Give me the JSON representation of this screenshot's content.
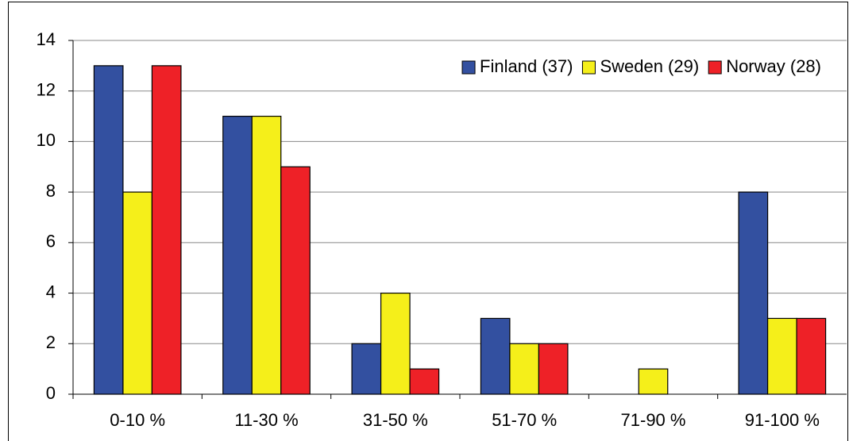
{
  "chart_data": {
    "type": "bar",
    "categories": [
      "0-10 %",
      "11-30 %",
      "31-50 %",
      "51-70 %",
      "71-90 %",
      "91-100 %"
    ],
    "series": [
      {
        "name": "Finland (37)",
        "color": "#3350a0",
        "values": [
          13,
          11,
          2,
          3,
          0,
          8
        ]
      },
      {
        "name": "Sweden (29)",
        "color": "#f5ef1a",
        "values": [
          8,
          11,
          4,
          2,
          1,
          3
        ]
      },
      {
        "name": "Norway (28)",
        "color": "#ee2127",
        "values": [
          13,
          9,
          1,
          2,
          0,
          3
        ]
      }
    ],
    "ylim": [
      0,
      14
    ],
    "yticks": [
      0,
      2,
      4,
      6,
      8,
      10,
      12,
      14
    ],
    "grid": true,
    "legend": "upper right"
  }
}
